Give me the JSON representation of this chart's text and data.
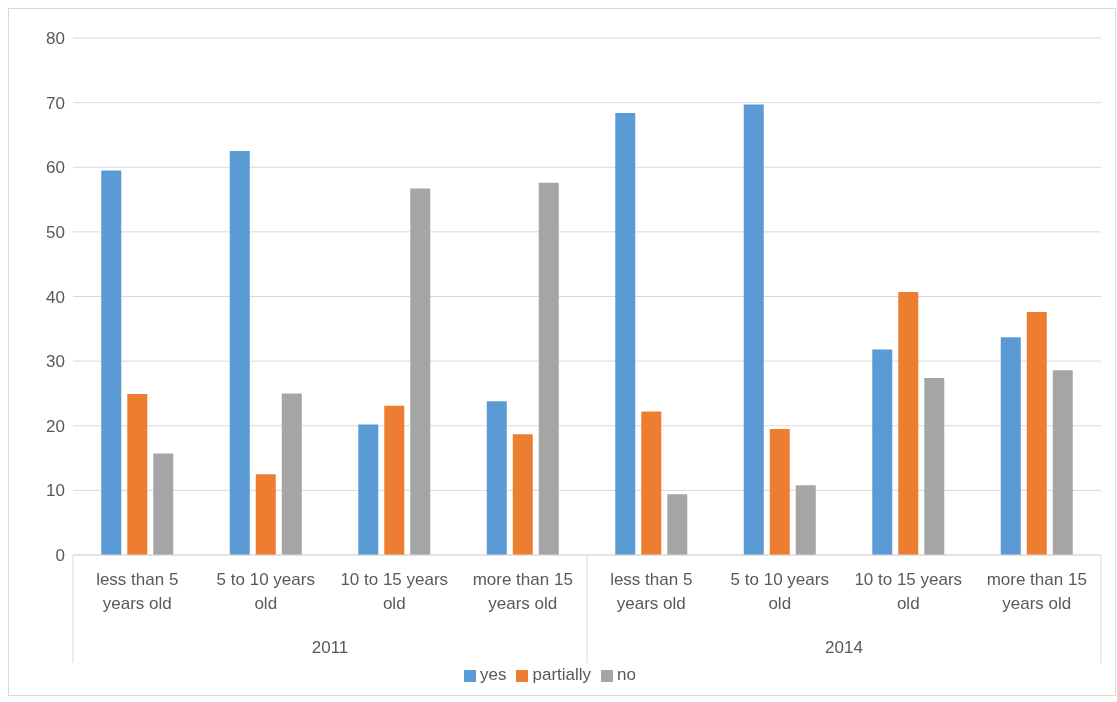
{
  "chart_data": {
    "type": "bar",
    "categories": [
      "less than 5 years old",
      "5 to 10 years old",
      "10 to 15 years old",
      "more than 15 years old",
      "less than 5 years old",
      "5 to 10 years old",
      "10 to 15 years old",
      "more than 15 years old"
    ],
    "series": [
      {
        "name": "yes",
        "color": "#5b9bd5",
        "values": [
          59.5,
          62.5,
          20.2,
          23.8,
          68.4,
          69.7,
          31.8,
          33.7
        ]
      },
      {
        "name": "partially",
        "color": "#ed7d31",
        "values": [
          24.9,
          12.5,
          23.1,
          18.7,
          22.2,
          19.5,
          40.7,
          37.6
        ]
      },
      {
        "name": "no",
        "color": "#a5a5a5",
        "values": [
          15.7,
          25.0,
          56.7,
          57.6,
          9.4,
          10.8,
          27.4,
          28.6
        ]
      }
    ],
    "annotations": [
      "2011",
      "2014"
    ],
    "ylim": [
      0,
      80
    ],
    "yticks": [
      0,
      10,
      20,
      30,
      40,
      50,
      60,
      70,
      80
    ],
    "grid": "y",
    "legend": "bottom"
  }
}
